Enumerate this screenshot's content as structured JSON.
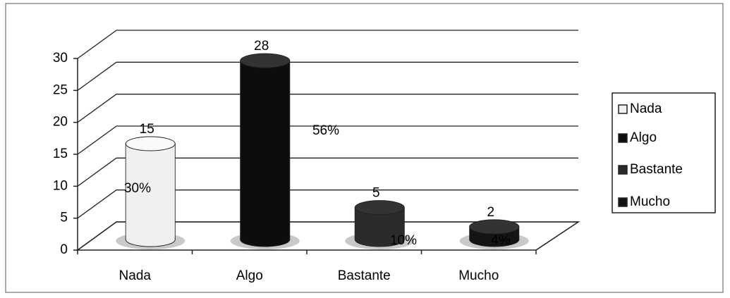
{
  "chart_data": {
    "type": "bar3d",
    "categories": [
      "Nada",
      "Algo",
      "Bastante",
      "Mucho"
    ],
    "values": [
      15,
      28,
      5,
      2
    ],
    "percent_labels": [
      "30%",
      "56%",
      "10%",
      "4%"
    ],
    "colors": [
      "#f0f0f0",
      "#0d0d0d",
      "#2b2b2b",
      "#141414"
    ],
    "ylim": [
      0,
      30
    ],
    "yticks": [
      0,
      5,
      10,
      15,
      20,
      25,
      30
    ],
    "grid": true,
    "legend": "right"
  }
}
